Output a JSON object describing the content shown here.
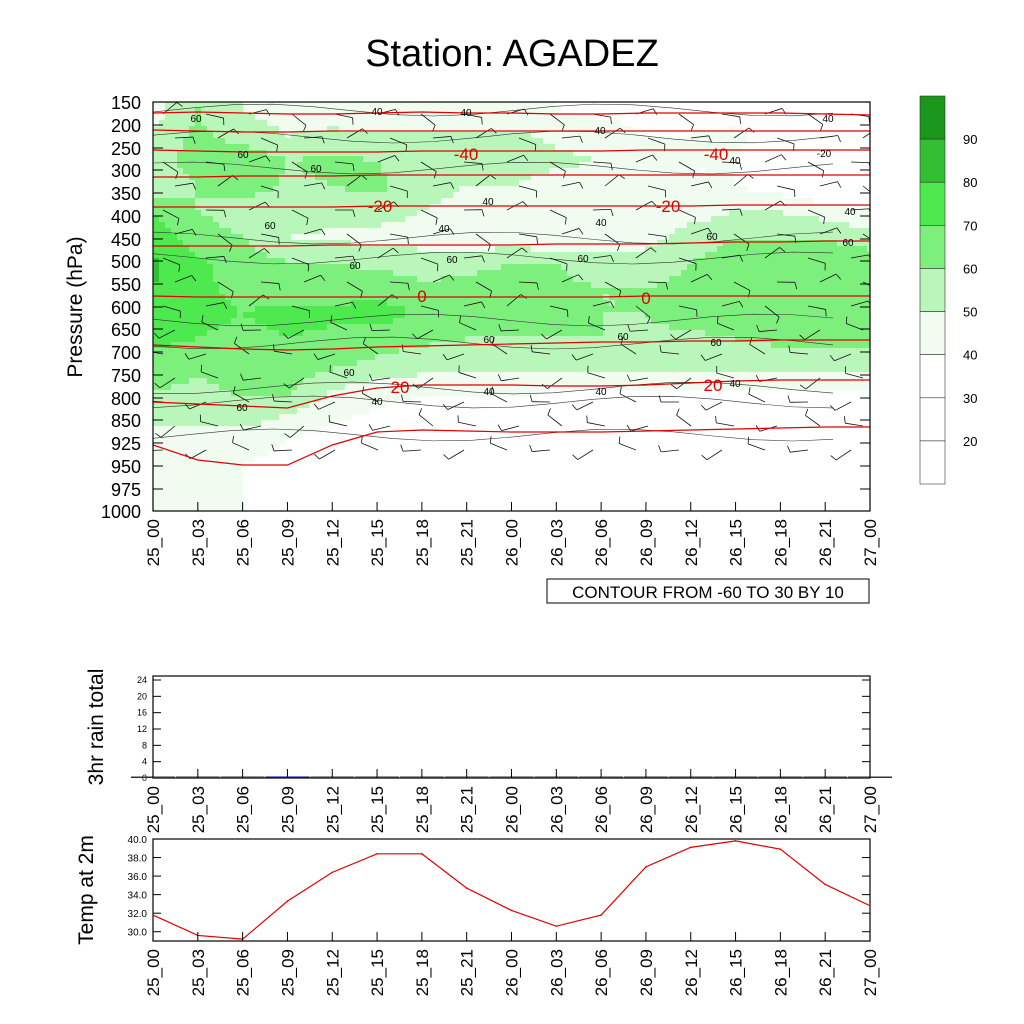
{
  "title": "Station: AGADEZ",
  "time_labels": [
    "25_00",
    "25_03",
    "25_06",
    "25_09",
    "25_12",
    "25_15",
    "25_18",
    "25_21",
    "26_00",
    "26_03",
    "26_06",
    "26_09",
    "26_12",
    "26_15",
    "26_18",
    "26_21",
    "27_00"
  ],
  "colors": {
    "fill_levels": [
      "#ffffff",
      "#ffffff",
      "#ffffff",
      "#f0fcf0",
      "#b9f6b9",
      "#7cef7c",
      "#4ee94e",
      "#32c032",
      "#1a961a"
    ],
    "temp_line": "#e00000",
    "rain_bar": "#0000b0",
    "t2m_line": "#e00000"
  },
  "chart_data": [
    {
      "type": "heatmap",
      "name": "humidity-cross-section",
      "title": "Station: AGADEZ",
      "ylabel": "Pressure (hPa)",
      "y_ticks": [
        "150",
        "200",
        "250",
        "300",
        "350",
        "400",
        "450",
        "500",
        "550",
        "600",
        "650",
        "700",
        "750",
        "800",
        "850",
        "925",
        "950",
        "975",
        "1000"
      ],
      "x_ticks": [
        "25_00",
        "25_03",
        "25_06",
        "25_09",
        "25_12",
        "25_15",
        "25_18",
        "25_21",
        "26_00",
        "26_03",
        "26_06",
        "26_09",
        "26_12",
        "26_15",
        "26_18",
        "26_21",
        "27_00"
      ],
      "contour_info": "CONTOUR FROM -60 TO 30 BY 10",
      "colorbar_labels": [
        "20",
        "30",
        "40",
        "50",
        "60",
        "70",
        "80",
        "90"
      ],
      "rh_grid": [
        [
          45,
          60,
          50,
          45,
          45,
          40,
          40,
          40,
          40,
          40,
          38,
          35,
          35,
          35,
          30,
          30,
          30
        ],
        [
          52,
          62,
          55,
          50,
          52,
          52,
          52,
          52,
          52,
          48,
          45,
          40,
          40,
          42,
          35,
          30,
          30
        ],
        [
          55,
          65,
          68,
          60,
          62,
          60,
          55,
          55,
          55,
          52,
          50,
          42,
          40,
          40,
          35,
          30,
          30
        ],
        [
          52,
          60,
          65,
          58,
          60,
          62,
          55,
          50,
          50,
          45,
          45,
          40,
          40,
          40,
          35,
          30,
          30
        ],
        [
          70,
          60,
          55,
          55,
          55,
          55,
          50,
          45,
          45,
          40,
          40,
          40,
          45,
          50,
          50,
          45,
          40
        ],
        [
          75,
          65,
          60,
          50,
          48,
          46,
          45,
          42,
          42,
          40,
          40,
          45,
          55,
          60,
          60,
          60,
          55
        ],
        [
          82,
          72,
          65,
          60,
          60,
          58,
          55,
          58,
          60,
          60,
          55,
          55,
          60,
          65,
          65,
          65,
          65
        ],
        [
          80,
          72,
          68,
          65,
          65,
          65,
          62,
          62,
          63,
          62,
          60,
          60,
          62,
          68,
          68,
          65,
          65
        ],
        [
          75,
          72,
          70,
          72,
          72,
          76,
          68,
          68,
          66,
          62,
          60,
          60,
          65,
          65,
          65,
          65,
          65
        ],
        [
          72,
          70,
          68,
          70,
          68,
          64,
          62,
          60,
          60,
          60,
          60,
          58,
          58,
          60,
          62,
          62,
          62
        ],
        [
          68,
          62,
          64,
          66,
          62,
          58,
          55,
          55,
          55,
          55,
          55,
          55,
          55,
          55,
          55,
          55,
          55
        ],
        [
          60,
          58,
          62,
          62,
          50,
          45,
          42,
          42,
          42,
          40,
          40,
          40,
          40,
          40,
          40,
          40,
          40
        ],
        [
          55,
          55,
          55,
          50,
          42,
          38,
          35,
          35,
          35,
          35,
          35,
          35,
          35,
          35,
          35,
          35,
          35
        ],
        [
          45,
          45,
          45,
          40,
          35,
          32,
          30,
          30,
          30,
          30,
          30,
          30,
          30,
          30,
          30,
          30,
          30
        ],
        [
          42,
          42,
          40,
          35,
          30,
          30,
          30,
          30,
          30,
          30,
          30,
          30,
          30,
          30,
          30,
          30,
          30
        ]
      ],
      "contour_labels": [
        "60",
        "40",
        "40",
        "40",
        "40",
        "60",
        "60",
        "40",
        "-20",
        "40",
        "60",
        "60",
        "60",
        "60",
        "40",
        "0",
        "60",
        "60",
        "60",
        "60",
        "20",
        "40",
        "40",
        "20",
        "-40",
        "-40",
        "-20",
        "-20",
        "0",
        "20",
        "40",
        "60",
        "60",
        "60",
        "60"
      ],
      "temperature_isolines": [
        {
          "value": -40,
          "label": "-40"
        },
        {
          "value": -20,
          "label": "-20"
        },
        {
          "value": 0,
          "label": "0"
        },
        {
          "value": 20,
          "label": "20"
        }
      ]
    },
    {
      "type": "bar",
      "name": "rain",
      "ylabel": "3hr rain total",
      "y_ticks": [
        "0",
        "4",
        "8",
        "12",
        "16",
        "20",
        "24"
      ],
      "ylim": [
        0,
        24
      ],
      "categories": [
        "25_00",
        "25_03",
        "25_06",
        "25_09",
        "25_12",
        "25_15",
        "25_18",
        "25_21",
        "26_00",
        "26_03",
        "26_06",
        "26_09",
        "26_12",
        "26_15",
        "26_18",
        "26_21",
        "27_00"
      ],
      "values": [
        0,
        0,
        0,
        0.2,
        0,
        0,
        0,
        0,
        0,
        0,
        0,
        0,
        0,
        0,
        0,
        0,
        0
      ]
    },
    {
      "type": "line",
      "name": "temp-2m",
      "ylabel": "Temp at 2m",
      "y_ticks": [
        "30.0",
        "32.0",
        "34.0",
        "36.0",
        "38.0",
        "40.0"
      ],
      "ylim": [
        29.0,
        40.0
      ],
      "x": [
        "25_00",
        "25_03",
        "25_06",
        "25_09",
        "25_12",
        "25_15",
        "25_18",
        "25_21",
        "26_00",
        "26_03",
        "26_06",
        "26_09",
        "26_12",
        "26_15",
        "26_18",
        "26_21",
        "27_00"
      ],
      "values": [
        31.8,
        29.6,
        29.2,
        33.3,
        36.4,
        38.4,
        38.4,
        34.7,
        32.3,
        30.6,
        31.8,
        37.0,
        39.1,
        39.8,
        38.9,
        35.1,
        32.8
      ]
    }
  ]
}
